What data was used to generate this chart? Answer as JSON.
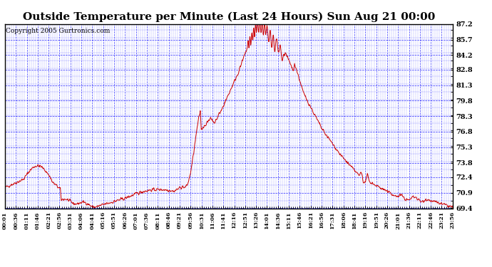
{
  "title": "Outside Temperature per Minute (Last 24 Hours) Sun Aug 21 00:00",
  "copyright": "Copyright 2005 Gurtronics.com",
  "background_color": "#ffffff",
  "plot_bg_color": "#ffffff",
  "grid_color": "#0000ff",
  "line_color": "#cc0000",
  "yticks": [
    69.4,
    70.9,
    72.4,
    73.8,
    75.3,
    76.8,
    78.3,
    79.8,
    81.3,
    82.8,
    84.2,
    85.7,
    87.2
  ],
  "ymin": 69.4,
  "ymax": 87.2,
  "title_fontsize": 11,
  "copyright_fontsize": 6.5,
  "xtick_labels": [
    "00:01",
    "00:36",
    "01:11",
    "01:46",
    "02:21",
    "02:56",
    "03:31",
    "04:06",
    "04:41",
    "05:16",
    "05:51",
    "06:26",
    "07:01",
    "07:36",
    "08:11",
    "08:46",
    "09:21",
    "09:56",
    "10:31",
    "11:06",
    "11:41",
    "12:16",
    "12:51",
    "13:26",
    "14:01",
    "14:36",
    "15:11",
    "15:46",
    "16:21",
    "16:56",
    "17:31",
    "18:06",
    "18:41",
    "19:16",
    "19:51",
    "20:26",
    "21:01",
    "21:36",
    "22:11",
    "22:46",
    "23:21",
    "23:56"
  ]
}
